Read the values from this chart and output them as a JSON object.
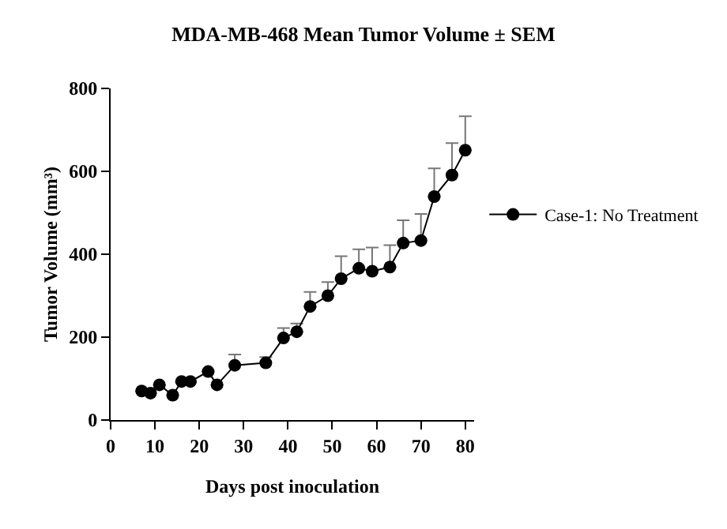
{
  "chart_data": {
    "type": "line",
    "title": "MDA-MB-468 Mean Tumor Volume ± SEM",
    "xlabel": "Days post inoculation",
    "ylabel": "Tumor Volume (mm³)",
    "x": [
      7,
      9,
      11,
      14,
      16,
      18,
      22,
      24,
      28,
      35,
      39,
      42,
      45,
      49,
      52,
      56,
      59,
      63,
      66,
      70,
      73,
      77,
      80
    ],
    "series": [
      {
        "name": "Case-1: No Treatment",
        "color": "#000000",
        "values": [
          70,
          65,
          85,
          60,
          93,
          93,
          117,
          85,
          132,
          138,
          198,
          213,
          274,
          300,
          341,
          366,
          359,
          369,
          427,
          433,
          539,
          591,
          651
        ],
        "errors": [
          null,
          null,
          null,
          null,
          null,
          null,
          null,
          null,
          [
            132,
            158
          ],
          [
            138,
            152
          ],
          [
            198,
            222
          ],
          [
            213,
            233
          ],
          [
            274,
            309
          ],
          [
            300,
            333
          ],
          [
            341,
            395
          ],
          [
            366,
            412
          ],
          [
            359,
            416
          ],
          [
            369,
            422
          ],
          [
            427,
            482
          ],
          [
            433,
            497
          ],
          [
            539,
            607
          ],
          [
            591,
            668
          ],
          [
            651,
            733
          ]
        ]
      }
    ],
    "xlim": [
      0,
      82
    ],
    "xticks": [
      0,
      10,
      20,
      30,
      40,
      50,
      60,
      70,
      80
    ],
    "ylim": [
      0,
      800
    ],
    "yticks": [
      0,
      200,
      400,
      600,
      800
    ],
    "grid": false,
    "legend": "right",
    "marker": "circle",
    "line_style": "solid"
  }
}
